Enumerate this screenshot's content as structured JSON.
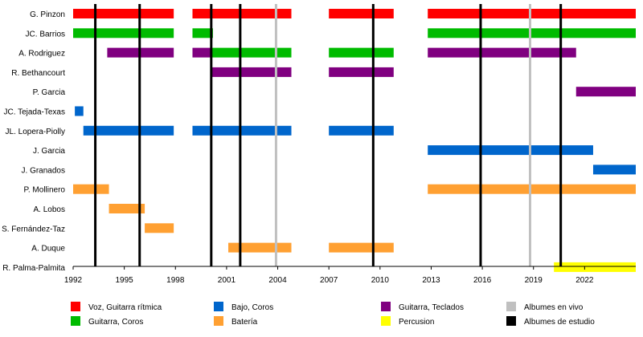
{
  "chart_data": {
    "type": "timeline",
    "xlim": [
      1992,
      2025
    ],
    "ticks": [
      1992,
      1995,
      1998,
      2001,
      2004,
      2007,
      2010,
      2013,
      2016,
      2019,
      2022
    ],
    "members": [
      "G. Pinzon",
      "JC. Barrios",
      "A. Rodriguez",
      "R. Bethancourt",
      "P. Garcia",
      "JC. Tejada-Texas",
      "JL. Lopera-Piolly",
      "J. Garcia",
      "J. Granados",
      "P. Mollinero",
      "A. Lobos",
      "S. Fernández-Taz",
      "A. Duque",
      "R. Palma-Palmita"
    ],
    "roles": {
      "vocals": {
        "label": "Voz, Guitarra rítmica",
        "color": "#ff0000"
      },
      "guitar": {
        "label": "Guitarra, Coros",
        "color": "#00bb00"
      },
      "bass": {
        "label": "Bajo, Coros",
        "color": "#0066cc"
      },
      "drums": {
        "label": "Batería",
        "color": "#ffa032"
      },
      "keys": {
        "label": "Guitarra, Teclados",
        "color": "#800080"
      },
      "perc": {
        "label": "Percusion",
        "color": "#ffff00"
      },
      "live": {
        "label": "Albumes en vivo",
        "color": "#c0c0c0"
      },
      "studio": {
        "label": "Albumes de estudio",
        "color": "#000000"
      }
    },
    "legend_order": [
      [
        "vocals",
        "bass",
        "keys",
        "live"
      ],
      [
        "guitar",
        "drums",
        "perc",
        "studio"
      ]
    ],
    "bars": [
      {
        "member": 0,
        "role": "vocals",
        "start": 1992.0,
        "end": 1997.9
      },
      {
        "member": 0,
        "role": "vocals",
        "start": 1999.0,
        "end": 2004.8
      },
      {
        "member": 0,
        "role": "vocals",
        "start": 2007.0,
        "end": 2010.8
      },
      {
        "member": 0,
        "role": "vocals",
        "start": 2012.8,
        "end": 2025.0
      },
      {
        "member": 1,
        "role": "guitar",
        "start": 1992.0,
        "end": 1997.9
      },
      {
        "member": 1,
        "role": "guitar",
        "start": 1999.0,
        "end": 2000.2
      },
      {
        "member": 1,
        "role": "guitar",
        "start": 2012.8,
        "end": 2025.0
      },
      {
        "member": 2,
        "role": "keys",
        "start": 1994.0,
        "end": 1997.9
      },
      {
        "member": 2,
        "role": "keys",
        "start": 1999.0,
        "end": 2000.1
      },
      {
        "member": 2,
        "role": "guitar",
        "start": 2000.1,
        "end": 2004.8
      },
      {
        "member": 2,
        "role": "guitar",
        "start": 2007.0,
        "end": 2010.8
      },
      {
        "member": 2,
        "role": "keys",
        "start": 2012.8,
        "end": 2021.5
      },
      {
        "member": 3,
        "role": "keys",
        "start": 2000.1,
        "end": 2004.8
      },
      {
        "member": 3,
        "role": "keys",
        "start": 2007.0,
        "end": 2010.8
      },
      {
        "member": 4,
        "role": "keys",
        "start": 2021.5,
        "end": 2025.0
      },
      {
        "member": 5,
        "role": "bass",
        "start": 1992.1,
        "end": 1992.6
      },
      {
        "member": 6,
        "role": "bass",
        "start": 1992.6,
        "end": 1997.9
      },
      {
        "member": 6,
        "role": "bass",
        "start": 1999.0,
        "end": 2004.8
      },
      {
        "member": 6,
        "role": "bass",
        "start": 2007.0,
        "end": 2010.8
      },
      {
        "member": 7,
        "role": "bass",
        "start": 2012.8,
        "end": 2022.5
      },
      {
        "member": 8,
        "role": "bass",
        "start": 2022.5,
        "end": 2025.0
      },
      {
        "member": 9,
        "role": "drums",
        "start": 1992.0,
        "end": 1994.1
      },
      {
        "member": 9,
        "role": "drums",
        "start": 2012.8,
        "end": 2025.0
      },
      {
        "member": 10,
        "role": "drums",
        "start": 1994.1,
        "end": 1996.2
      },
      {
        "member": 11,
        "role": "drums",
        "start": 1996.2,
        "end": 1997.9
      },
      {
        "member": 12,
        "role": "drums",
        "start": 2001.1,
        "end": 2004.8
      },
      {
        "member": 12,
        "role": "drums",
        "start": 2007.0,
        "end": 2010.8
      },
      {
        "member": 13,
        "role": "perc",
        "start": 2020.2,
        "end": 2025.0
      }
    ],
    "studio_albums": [
      1993.3,
      1995.9,
      2000.1,
      2001.8,
      2009.6,
      2015.9,
      2020.6
    ],
    "live_albums": [
      2003.9,
      2018.8
    ]
  }
}
